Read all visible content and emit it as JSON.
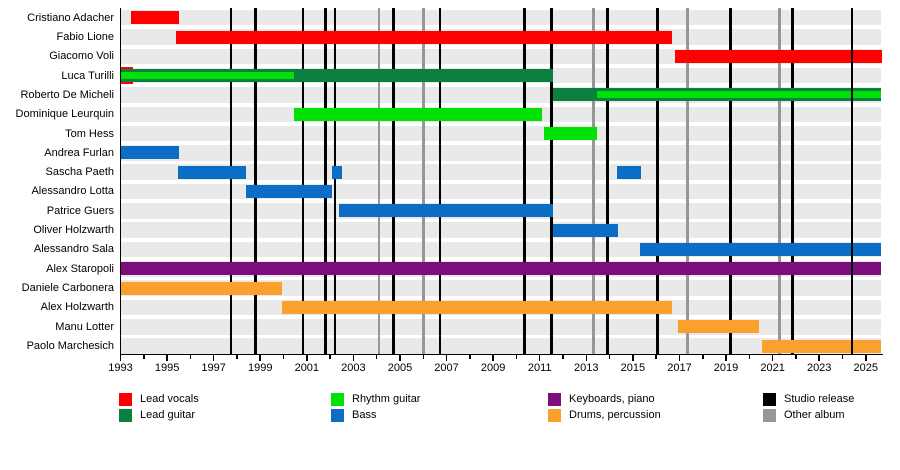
{
  "colors": {
    "lead_vocals": "#fe0000",
    "lead_guitar": "#0c8040",
    "rhythm_guitar": "#00e105",
    "bass": "#0b6dc4",
    "keyboards": "#7d0c7d",
    "drums": "#f9a12c",
    "studio_release": "#000000",
    "other_album": "#969696",
    "row_stripe": "#e9e9e9"
  },
  "legend": [
    {
      "key": "lead_vocals",
      "label": "Lead vocals",
      "col": 0,
      "row": 0
    },
    {
      "key": "lead_guitar",
      "label": "Lead guitar",
      "col": 0,
      "row": 1
    },
    {
      "key": "rhythm_guitar",
      "label": "Rhythm guitar",
      "col": 1,
      "row": 0
    },
    {
      "key": "bass",
      "label": "Bass",
      "col": 1,
      "row": 1
    },
    {
      "key": "keyboards",
      "label": "Keyboards, piano",
      "col": 2,
      "row": 0
    },
    {
      "key": "drums",
      "label": "Drums, percussion",
      "col": 2,
      "row": 1
    },
    {
      "key": "studio_release",
      "label": "Studio release",
      "col": 3,
      "row": 0
    },
    {
      "key": "other_album",
      "label": "Other album",
      "col": 3,
      "row": 1
    }
  ],
  "chart_data": {
    "type": "bar",
    "variant": "gantt-member-timeline",
    "x_axis": {
      "min": 1993,
      "max": 2025.65,
      "tick_interval": 1,
      "label_interval": 2,
      "labels": [
        "1993",
        "1995",
        "1997",
        "1999",
        "2001",
        "2003",
        "2005",
        "2007",
        "2009",
        "2011",
        "2013",
        "2015",
        "2017",
        "2019",
        "2021",
        "2023",
        "2025"
      ]
    },
    "members": [
      {
        "name": "Cristiano Adacher",
        "segments": [
          {
            "role": "lead_vocals",
            "start": 1993.45,
            "end": 1995.5,
            "size": "normal"
          }
        ]
      },
      {
        "name": "Fabio Lione",
        "segments": [
          {
            "role": "lead_vocals",
            "start": 1995.4,
            "end": 2016.7,
            "size": "normal"
          }
        ]
      },
      {
        "name": "Giacomo Voli",
        "segments": [
          {
            "role": "lead_vocals",
            "start": 2016.8,
            "end": 2025.7,
            "size": "normal"
          }
        ]
      },
      {
        "name": "Luca Turilli",
        "segments": [
          {
            "role": "lead_vocals",
            "start": 1993.0,
            "end": 1993.55,
            "size": "tall"
          },
          {
            "role": "lead_guitar",
            "start": 1993.0,
            "end": 2011.55,
            "size": "normal"
          },
          {
            "role": "rhythm_guitar",
            "start": 1993.0,
            "end": 2000.45,
            "size": "inner"
          }
        ]
      },
      {
        "name": "Roberto De Micheli",
        "segments": [
          {
            "role": "lead_guitar",
            "start": 2011.55,
            "end": 2025.65,
            "size": "normal"
          },
          {
            "role": "rhythm_guitar",
            "start": 2013.45,
            "end": 2025.65,
            "size": "inner"
          }
        ]
      },
      {
        "name": "Dominique Leurquin",
        "segments": [
          {
            "role": "rhythm_guitar",
            "start": 2000.45,
            "end": 2011.1,
            "size": "normal"
          }
        ]
      },
      {
        "name": "Tom Hess",
        "segments": [
          {
            "role": "rhythm_guitar",
            "start": 2011.2,
            "end": 2013.45,
            "size": "normal"
          }
        ]
      },
      {
        "name": "Andrea Furlan",
        "segments": [
          {
            "role": "bass",
            "start": 1993.0,
            "end": 1995.5,
            "size": "normal"
          }
        ]
      },
      {
        "name": "Sascha Paeth",
        "segments": [
          {
            "role": "bass",
            "start": 1995.45,
            "end": 1998.4,
            "size": "normal"
          },
          {
            "role": "bass",
            "start": 2002.1,
            "end": 2002.5,
            "size": "normal"
          },
          {
            "role": "bass",
            "start": 2014.3,
            "end": 2015.35,
            "size": "normal"
          }
        ]
      },
      {
        "name": "Alessandro Lotta",
        "segments": [
          {
            "role": "bass",
            "start": 1998.4,
            "end": 2002.1,
            "size": "normal"
          }
        ]
      },
      {
        "name": "Patrice Guers",
        "segments": [
          {
            "role": "bass",
            "start": 2002.4,
            "end": 2011.55,
            "size": "normal"
          }
        ]
      },
      {
        "name": "Oliver Holzwarth",
        "segments": [
          {
            "role": "bass",
            "start": 2011.55,
            "end": 2014.35,
            "size": "normal"
          }
        ]
      },
      {
        "name": "Alessandro Sala",
        "segments": [
          {
            "role": "bass",
            "start": 2015.3,
            "end": 2025.65,
            "size": "normal"
          }
        ]
      },
      {
        "name": "Alex Staropoli",
        "segments": [
          {
            "role": "keyboards",
            "start": 1993.0,
            "end": 2025.65,
            "size": "normal"
          }
        ]
      },
      {
        "name": "Daniele Carbonera",
        "segments": [
          {
            "role": "drums",
            "start": 1993.0,
            "end": 1999.95,
            "size": "normal"
          }
        ]
      },
      {
        "name": "Alex Holzwarth",
        "segments": [
          {
            "role": "drums",
            "start": 1999.95,
            "end": 2016.7,
            "size": "normal"
          }
        ]
      },
      {
        "name": "Manu Lotter",
        "segments": [
          {
            "role": "drums",
            "start": 2016.95,
            "end": 2020.4,
            "size": "normal"
          }
        ]
      },
      {
        "name": "Paolo Marchesich",
        "segments": [
          {
            "role": "drums",
            "start": 2020.55,
            "end": 2025.65,
            "size": "normal"
          }
        ]
      }
    ],
    "events": [
      {
        "year": 1997.75,
        "kind": "studio_release",
        "layer": "back"
      },
      {
        "year": 1998.8,
        "kind": "studio_release",
        "layer": "back"
      },
      {
        "year": 2000.83,
        "kind": "studio_release",
        "layer": "back"
      },
      {
        "year": 2001.8,
        "kind": "studio_release",
        "layer": "back"
      },
      {
        "year": 2002.2,
        "kind": "studio_release",
        "layer": "back"
      },
      {
        "year": 2004.1,
        "kind": "other_album",
        "layer": "back"
      },
      {
        "year": 2004.72,
        "kind": "studio_release",
        "layer": "back"
      },
      {
        "year": 2006.0,
        "kind": "other_album",
        "layer": "back"
      },
      {
        "year": 2006.72,
        "kind": "studio_release",
        "layer": "back"
      },
      {
        "year": 2010.35,
        "kind": "studio_release",
        "layer": "back"
      },
      {
        "year": 2011.5,
        "kind": "studio_release",
        "layer": "back"
      },
      {
        "year": 2013.3,
        "kind": "other_album",
        "layer": "back"
      },
      {
        "year": 2013.9,
        "kind": "studio_release",
        "layer": "back"
      },
      {
        "year": 2016.05,
        "kind": "studio_release",
        "layer": "back"
      },
      {
        "year": 2017.35,
        "kind": "other_album",
        "layer": "back"
      },
      {
        "year": 2019.2,
        "kind": "studio_release",
        "layer": "back"
      },
      {
        "year": 2021.3,
        "kind": "other_album",
        "layer": "back"
      },
      {
        "year": 2021.85,
        "kind": "studio_release",
        "layer": "back"
      },
      {
        "year": 2024.4,
        "kind": "studio_release",
        "layer": "front"
      }
    ]
  }
}
